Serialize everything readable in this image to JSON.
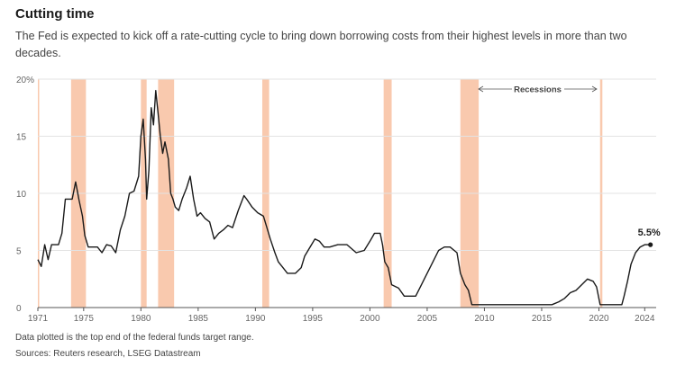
{
  "chart_data": {
    "type": "line",
    "title": "Cutting time",
    "subtitle": "The Fed is expected to kick off a rate-cutting cycle to bring down borrowing costs from their highest levels in more than two decades.",
    "xlabel": "",
    "ylabel": "",
    "xlim": [
      1971,
      2025
    ],
    "ylim": [
      0,
      20
    ],
    "y_ticks": [
      0,
      5,
      10,
      15,
      20
    ],
    "y_tick_labels": [
      "0",
      "5",
      "10",
      "15",
      "20%"
    ],
    "x_ticks": [
      1971,
      1975,
      1980,
      1985,
      1990,
      1995,
      2000,
      2005,
      2010,
      2015,
      2020,
      2024
    ],
    "grid": true,
    "series_color": "#1a1a1a",
    "recession_color": "#f9c9ae",
    "recessions_label": "Recessions",
    "end_label": "5.5%",
    "recessions": [
      [
        1970.0,
        1970.9
      ],
      [
        1973.9,
        1975.2
      ],
      [
        1980.0,
        1980.5
      ],
      [
        1981.5,
        1982.9
      ],
      [
        1990.6,
        1991.2
      ],
      [
        2001.2,
        2001.9
      ],
      [
        2007.9,
        2009.5
      ],
      [
        2020.1,
        2020.3
      ]
    ],
    "series": [
      {
        "name": "",
        "x": [
          1971.0,
          1971.3,
          1971.6,
          1971.9,
          1972.2,
          1972.5,
          1972.8,
          1973.1,
          1973.4,
          1973.7,
          1974.0,
          1974.3,
          1974.6,
          1974.9,
          1975.1,
          1975.4,
          1975.8,
          1976.2,
          1976.6,
          1977.0,
          1977.4,
          1977.8,
          1978.2,
          1978.6,
          1979.0,
          1979.4,
          1979.8,
          1980.0,
          1980.2,
          1980.4,
          1980.5,
          1980.7,
          1980.9,
          1981.1,
          1981.3,
          1981.5,
          1981.7,
          1981.9,
          1982.1,
          1982.4,
          1982.6,
          1982.8,
          1983.0,
          1983.3,
          1983.6,
          1984.0,
          1984.3,
          1984.6,
          1984.9,
          1985.2,
          1985.6,
          1986.0,
          1986.4,
          1986.8,
          1987.2,
          1987.6,
          1988.0,
          1988.5,
          1989.0,
          1989.3,
          1989.7,
          1990.2,
          1990.7,
          1991.0,
          1991.3,
          1991.7,
          1992.0,
          1992.4,
          1992.8,
          1993.5,
          1994.0,
          1994.3,
          1994.6,
          1994.9,
          1995.2,
          1995.6,
          1996.0,
          1996.5,
          1997.2,
          1998.0,
          1998.8,
          1999.5,
          2000.0,
          2000.4,
          2000.9,
          2001.1,
          2001.3,
          2001.6,
          2001.9,
          2002.5,
          2003.0,
          2003.5,
          2004.0,
          2004.5,
          2005.0,
          2005.5,
          2006.0,
          2006.5,
          2007.0,
          2007.6,
          2007.9,
          2008.1,
          2008.3,
          2008.6,
          2008.9,
          2009.5,
          2012.0,
          2015.9,
          2016.5,
          2017.0,
          2017.5,
          2018.0,
          2018.5,
          2019.0,
          2019.5,
          2019.8,
          2020.1,
          2020.3,
          2021.0,
          2022.0,
          2022.2,
          2022.5,
          2022.8,
          2023.2,
          2023.6,
          2024.0,
          2024.5
        ],
        "y": [
          4.2,
          3.6,
          5.5,
          4.2,
          5.5,
          5.5,
          5.5,
          6.5,
          9.5,
          9.5,
          9.5,
          11.0,
          9.4,
          8.0,
          6.3,
          5.3,
          5.3,
          5.3,
          4.8,
          5.5,
          5.4,
          4.8,
          6.8,
          8.0,
          10.0,
          10.2,
          11.5,
          15.0,
          16.5,
          13.0,
          9.5,
          12.0,
          17.5,
          16.0,
          19.0,
          17.0,
          15.0,
          13.5,
          14.5,
          13.0,
          10.0,
          9.5,
          8.8,
          8.5,
          9.5,
          10.5,
          11.5,
          9.5,
          8.0,
          8.3,
          7.8,
          7.5,
          6.0,
          6.5,
          6.8,
          7.2,
          7.0,
          8.5,
          9.8,
          9.4,
          8.8,
          8.3,
          8.0,
          7.0,
          6.0,
          4.8,
          4.0,
          3.5,
          3.0,
          3.0,
          3.5,
          4.5,
          5.0,
          5.5,
          6.0,
          5.8,
          5.3,
          5.3,
          5.5,
          5.5,
          4.8,
          5.0,
          5.8,
          6.5,
          6.5,
          5.5,
          4.0,
          3.5,
          2.0,
          1.7,
          1.0,
          1.0,
          1.0,
          2.0,
          3.0,
          4.0,
          5.0,
          5.3,
          5.3,
          4.8,
          3.0,
          2.5,
          2.0,
          1.5,
          0.25,
          0.25,
          0.25,
          0.25,
          0.5,
          0.8,
          1.3,
          1.5,
          2.0,
          2.5,
          2.3,
          1.8,
          0.25,
          0.25,
          0.25,
          0.25,
          1.0,
          2.3,
          3.8,
          4.8,
          5.3,
          5.5,
          5.5
        ]
      }
    ],
    "footnote": "Data plotted is the top end of the federal funds target range.",
    "source": "Sources: Reuters research, LSEG Datastream"
  }
}
